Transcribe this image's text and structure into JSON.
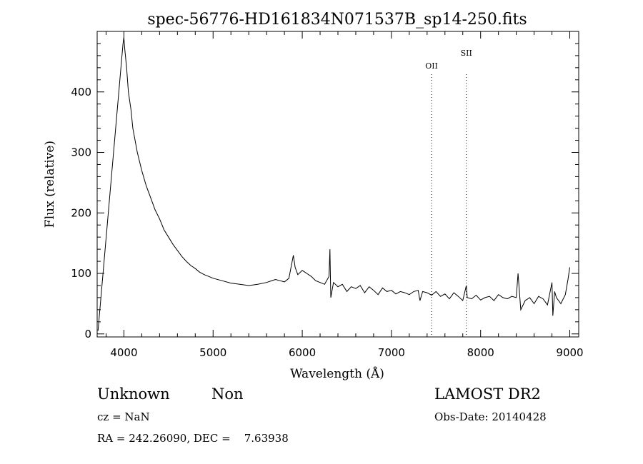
{
  "chart_data": {
    "type": "line",
    "title": "spec-56776-HD161834N071537B_sp14-250.fits",
    "xlabel": "Wavelength (Å)",
    "ylabel": "Flux (relative)",
    "xlim": [
      3700,
      9100
    ],
    "ylim": [
      -5,
      500
    ],
    "xticks": [
      4000,
      5000,
      6000,
      7000,
      8000,
      9000
    ],
    "yticks": [
      0,
      100,
      200,
      300,
      400
    ],
    "grid": false,
    "lines": [
      {
        "label": "OII",
        "x": 7450
      },
      {
        "label": "SII",
        "x": 7840
      }
    ],
    "series": [
      {
        "x": [
          3710,
          3990,
          4000,
          4010,
          4030,
          4050,
          4080,
          4100,
          4150,
          4200,
          4250,
          4300,
          4350,
          4400,
          4450,
          4500,
          4550,
          4600,
          4650,
          4700,
          4750,
          4800,
          4850,
          4900,
          4950,
          5000,
          5100,
          5200,
          5300,
          5400,
          5500,
          5600,
          5700,
          5750,
          5800,
          5850,
          5900,
          5920,
          5950,
          6000,
          6050,
          6100,
          6150,
          6200,
          6250,
          6300,
          6310,
          6320,
          6350,
          6400,
          6450,
          6500,
          6550,
          6600,
          6650,
          6700,
          6750,
          6800,
          6850,
          6900,
          6950,
          7000,
          7050,
          7100,
          7150,
          7200,
          7250,
          7300,
          7320,
          7350,
          7400,
          7450,
          7500,
          7550,
          7600,
          7650,
          7700,
          7750,
          7800,
          7840,
          7850,
          7900,
          7950,
          8000,
          8050,
          8100,
          8150,
          8200,
          8250,
          8300,
          8350,
          8400,
          8420,
          8450,
          8500,
          8550,
          8600,
          8650,
          8700,
          8750,
          8800,
          8810,
          8830,
          8850,
          8900,
          8950,
          8980,
          9000
        ],
        "y": [
          5,
          480,
          490,
          470,
          440,
          400,
          370,
          340,
          300,
          270,
          245,
          225,
          205,
          190,
          172,
          160,
          148,
          138,
          128,
          120,
          113,
          108,
          102,
          98,
          95,
          92,
          88,
          84,
          82,
          80,
          82,
          85,
          90,
          88,
          86,
          92,
          130,
          110,
          98,
          105,
          100,
          95,
          88,
          85,
          82,
          95,
          140,
          60,
          85,
          78,
          82,
          70,
          78,
          75,
          80,
          68,
          78,
          72,
          65,
          76,
          70,
          72,
          66,
          70,
          68,
          65,
          70,
          72,
          55,
          70,
          68,
          64,
          70,
          62,
          66,
          58,
          68,
          62,
          55,
          80,
          60,
          58,
          64,
          56,
          60,
          62,
          55,
          65,
          60,
          58,
          62,
          60,
          100,
          40,
          55,
          60,
          50,
          62,
          58,
          48,
          85,
          30,
          70,
          60,
          50,
          65,
          90,
          110
        ]
      }
    ]
  },
  "info": {
    "class": "Unknown",
    "subclass": "Non",
    "survey": "LAMOST DR2",
    "cz": "cz = NaN",
    "obsdate": "Obs-Date: 20140428",
    "radec": "RA = 242.26090, DEC =    7.63938"
  }
}
